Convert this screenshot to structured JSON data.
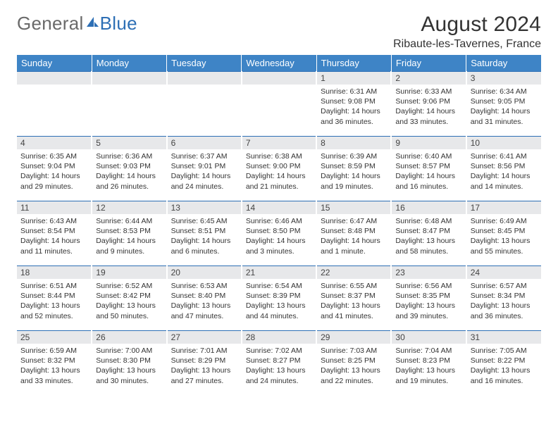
{
  "logo": {
    "text1": "General",
    "text2": "Blue"
  },
  "header": {
    "month_title": "August 2024",
    "location": "Ribaute-les-Tavernes, France"
  },
  "colors": {
    "header_bg": "#3e84c6",
    "daynum_bg": "#e7e8ea",
    "row_border": "#2d6fb5",
    "text": "#333333",
    "logo_gray": "#6a6a6a",
    "logo_blue": "#2d6fb5"
  },
  "weekdays": [
    "Sunday",
    "Monday",
    "Tuesday",
    "Wednesday",
    "Thursday",
    "Friday",
    "Saturday"
  ],
  "weeks": [
    [
      {
        "day": "",
        "sunrise": "",
        "sunset": "",
        "daylight": ""
      },
      {
        "day": "",
        "sunrise": "",
        "sunset": "",
        "daylight": ""
      },
      {
        "day": "",
        "sunrise": "",
        "sunset": "",
        "daylight": ""
      },
      {
        "day": "",
        "sunrise": "",
        "sunset": "",
        "daylight": ""
      },
      {
        "day": "1",
        "sunrise": "Sunrise: 6:31 AM",
        "sunset": "Sunset: 9:08 PM",
        "daylight": "Daylight: 14 hours and 36 minutes."
      },
      {
        "day": "2",
        "sunrise": "Sunrise: 6:33 AM",
        "sunset": "Sunset: 9:06 PM",
        "daylight": "Daylight: 14 hours and 33 minutes."
      },
      {
        "day": "3",
        "sunrise": "Sunrise: 6:34 AM",
        "sunset": "Sunset: 9:05 PM",
        "daylight": "Daylight: 14 hours and 31 minutes."
      }
    ],
    [
      {
        "day": "4",
        "sunrise": "Sunrise: 6:35 AM",
        "sunset": "Sunset: 9:04 PM",
        "daylight": "Daylight: 14 hours and 29 minutes."
      },
      {
        "day": "5",
        "sunrise": "Sunrise: 6:36 AM",
        "sunset": "Sunset: 9:03 PM",
        "daylight": "Daylight: 14 hours and 26 minutes."
      },
      {
        "day": "6",
        "sunrise": "Sunrise: 6:37 AM",
        "sunset": "Sunset: 9:01 PM",
        "daylight": "Daylight: 14 hours and 24 minutes."
      },
      {
        "day": "7",
        "sunrise": "Sunrise: 6:38 AM",
        "sunset": "Sunset: 9:00 PM",
        "daylight": "Daylight: 14 hours and 21 minutes."
      },
      {
        "day": "8",
        "sunrise": "Sunrise: 6:39 AM",
        "sunset": "Sunset: 8:59 PM",
        "daylight": "Daylight: 14 hours and 19 minutes."
      },
      {
        "day": "9",
        "sunrise": "Sunrise: 6:40 AM",
        "sunset": "Sunset: 8:57 PM",
        "daylight": "Daylight: 14 hours and 16 minutes."
      },
      {
        "day": "10",
        "sunrise": "Sunrise: 6:41 AM",
        "sunset": "Sunset: 8:56 PM",
        "daylight": "Daylight: 14 hours and 14 minutes."
      }
    ],
    [
      {
        "day": "11",
        "sunrise": "Sunrise: 6:43 AM",
        "sunset": "Sunset: 8:54 PM",
        "daylight": "Daylight: 14 hours and 11 minutes."
      },
      {
        "day": "12",
        "sunrise": "Sunrise: 6:44 AM",
        "sunset": "Sunset: 8:53 PM",
        "daylight": "Daylight: 14 hours and 9 minutes."
      },
      {
        "day": "13",
        "sunrise": "Sunrise: 6:45 AM",
        "sunset": "Sunset: 8:51 PM",
        "daylight": "Daylight: 14 hours and 6 minutes."
      },
      {
        "day": "14",
        "sunrise": "Sunrise: 6:46 AM",
        "sunset": "Sunset: 8:50 PM",
        "daylight": "Daylight: 14 hours and 3 minutes."
      },
      {
        "day": "15",
        "sunrise": "Sunrise: 6:47 AM",
        "sunset": "Sunset: 8:48 PM",
        "daylight": "Daylight: 14 hours and 1 minute."
      },
      {
        "day": "16",
        "sunrise": "Sunrise: 6:48 AM",
        "sunset": "Sunset: 8:47 PM",
        "daylight": "Daylight: 13 hours and 58 minutes."
      },
      {
        "day": "17",
        "sunrise": "Sunrise: 6:49 AM",
        "sunset": "Sunset: 8:45 PM",
        "daylight": "Daylight: 13 hours and 55 minutes."
      }
    ],
    [
      {
        "day": "18",
        "sunrise": "Sunrise: 6:51 AM",
        "sunset": "Sunset: 8:44 PM",
        "daylight": "Daylight: 13 hours and 52 minutes."
      },
      {
        "day": "19",
        "sunrise": "Sunrise: 6:52 AM",
        "sunset": "Sunset: 8:42 PM",
        "daylight": "Daylight: 13 hours and 50 minutes."
      },
      {
        "day": "20",
        "sunrise": "Sunrise: 6:53 AM",
        "sunset": "Sunset: 8:40 PM",
        "daylight": "Daylight: 13 hours and 47 minutes."
      },
      {
        "day": "21",
        "sunrise": "Sunrise: 6:54 AM",
        "sunset": "Sunset: 8:39 PM",
        "daylight": "Daylight: 13 hours and 44 minutes."
      },
      {
        "day": "22",
        "sunrise": "Sunrise: 6:55 AM",
        "sunset": "Sunset: 8:37 PM",
        "daylight": "Daylight: 13 hours and 41 minutes."
      },
      {
        "day": "23",
        "sunrise": "Sunrise: 6:56 AM",
        "sunset": "Sunset: 8:35 PM",
        "daylight": "Daylight: 13 hours and 39 minutes."
      },
      {
        "day": "24",
        "sunrise": "Sunrise: 6:57 AM",
        "sunset": "Sunset: 8:34 PM",
        "daylight": "Daylight: 13 hours and 36 minutes."
      }
    ],
    [
      {
        "day": "25",
        "sunrise": "Sunrise: 6:59 AM",
        "sunset": "Sunset: 8:32 PM",
        "daylight": "Daylight: 13 hours and 33 minutes."
      },
      {
        "day": "26",
        "sunrise": "Sunrise: 7:00 AM",
        "sunset": "Sunset: 8:30 PM",
        "daylight": "Daylight: 13 hours and 30 minutes."
      },
      {
        "day": "27",
        "sunrise": "Sunrise: 7:01 AM",
        "sunset": "Sunset: 8:29 PM",
        "daylight": "Daylight: 13 hours and 27 minutes."
      },
      {
        "day": "28",
        "sunrise": "Sunrise: 7:02 AM",
        "sunset": "Sunset: 8:27 PM",
        "daylight": "Daylight: 13 hours and 24 minutes."
      },
      {
        "day": "29",
        "sunrise": "Sunrise: 7:03 AM",
        "sunset": "Sunset: 8:25 PM",
        "daylight": "Daylight: 13 hours and 22 minutes."
      },
      {
        "day": "30",
        "sunrise": "Sunrise: 7:04 AM",
        "sunset": "Sunset: 8:23 PM",
        "daylight": "Daylight: 13 hours and 19 minutes."
      },
      {
        "day": "31",
        "sunrise": "Sunrise: 7:05 AM",
        "sunset": "Sunset: 8:22 PM",
        "daylight": "Daylight: 13 hours and 16 minutes."
      }
    ]
  ]
}
